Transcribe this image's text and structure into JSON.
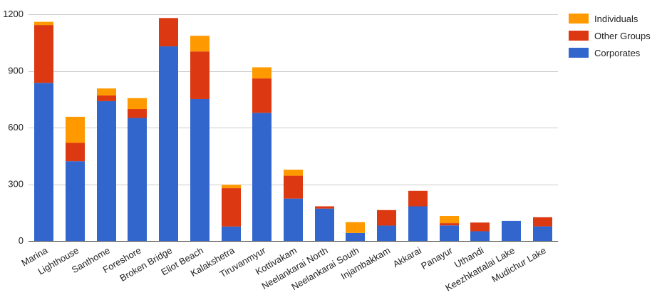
{
  "chart_data": {
    "type": "bar",
    "stacked": true,
    "title": "",
    "xlabel": "",
    "ylabel": "",
    "ylim": [
      0,
      1200
    ],
    "yticks": [
      0,
      300,
      600,
      900,
      1200
    ],
    "grid": true,
    "legend_position": "top-right",
    "categories": [
      "Marina",
      "Lighthouse",
      "Santhome",
      "Foreshore",
      "Broken Bridge",
      "Eliot Beach",
      "Kalakshetra",
      "Tiruvanmyur",
      "Kottivakam",
      "Neelankarai North",
      "Neelankarai South",
      "Injambakkam",
      "Akkarai",
      "Panayur",
      "Uthandi",
      "Keezhkattalai Lake",
      "Mudichur Lake"
    ],
    "series": [
      {
        "name": "Corporates",
        "color": "#3366cc",
        "values": [
          837,
          422,
          740,
          651,
          1030,
          751,
          76,
          678,
          224,
          171,
          42,
          81,
          183,
          82,
          51,
          106,
          77
        ]
      },
      {
        "name": "Other Groups",
        "color": "#dc3912",
        "values": [
          306,
          97,
          30,
          47,
          150,
          252,
          203,
          182,
          121,
          12,
          0,
          82,
          82,
          12,
          46,
          0,
          48
        ]
      },
      {
        "name": "Individuals",
        "color": "#ff9900",
        "values": [
          17,
          138,
          37,
          58,
          0,
          83,
          18,
          59,
          32,
          0,
          57,
          0,
          0,
          38,
          0,
          0,
          0
        ]
      }
    ],
    "legend_order": [
      "Individuals",
      "Other Groups",
      "Corporates"
    ]
  }
}
